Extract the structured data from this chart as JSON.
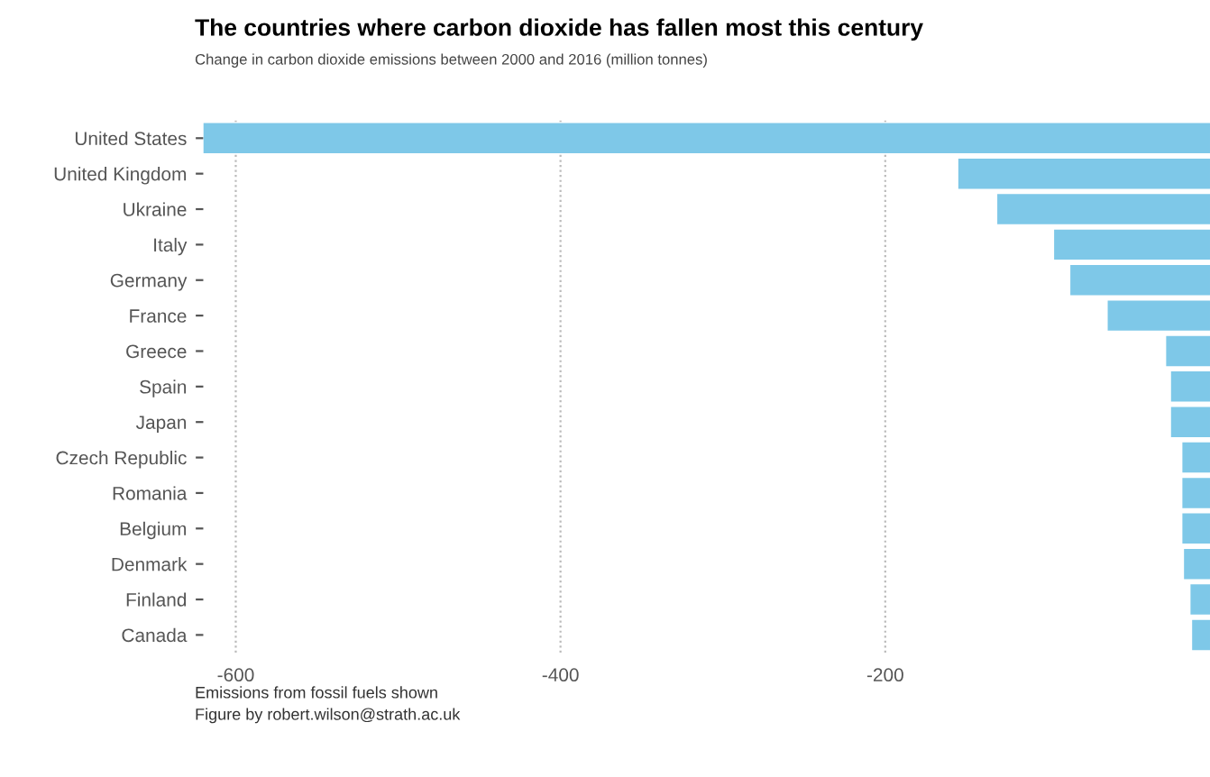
{
  "chart_data": {
    "type": "bar",
    "orientation": "horizontal",
    "title": "The countries where carbon dioxide has fallen most this century",
    "subtitle": "Change in carbon dioxide emissions between 2000 and 2016 (million tonnes)",
    "categories": [
      "United States",
      "United Kingdom",
      "Ukraine",
      "Italy",
      "Germany",
      "France",
      "Greece",
      "Spain",
      "Japan",
      "Czech Republic",
      "Romania",
      "Belgium",
      "Denmark",
      "Finland",
      "Canada"
    ],
    "values": [
      -620,
      -155,
      -131,
      -96,
      -86,
      -63,
      -27,
      -24,
      -24,
      -17,
      -17,
      -17,
      -16,
      -12,
      -11
    ],
    "color": "#7ec8e8",
    "xlim": [
      -620,
      0
    ],
    "xticks": [
      -600,
      -400,
      -200
    ],
    "grid": "x",
    "legend": false,
    "annotations": [
      "Emissions from fossil fuels shown",
      "Figure by robert.wilson@strath.ac.uk"
    ]
  }
}
